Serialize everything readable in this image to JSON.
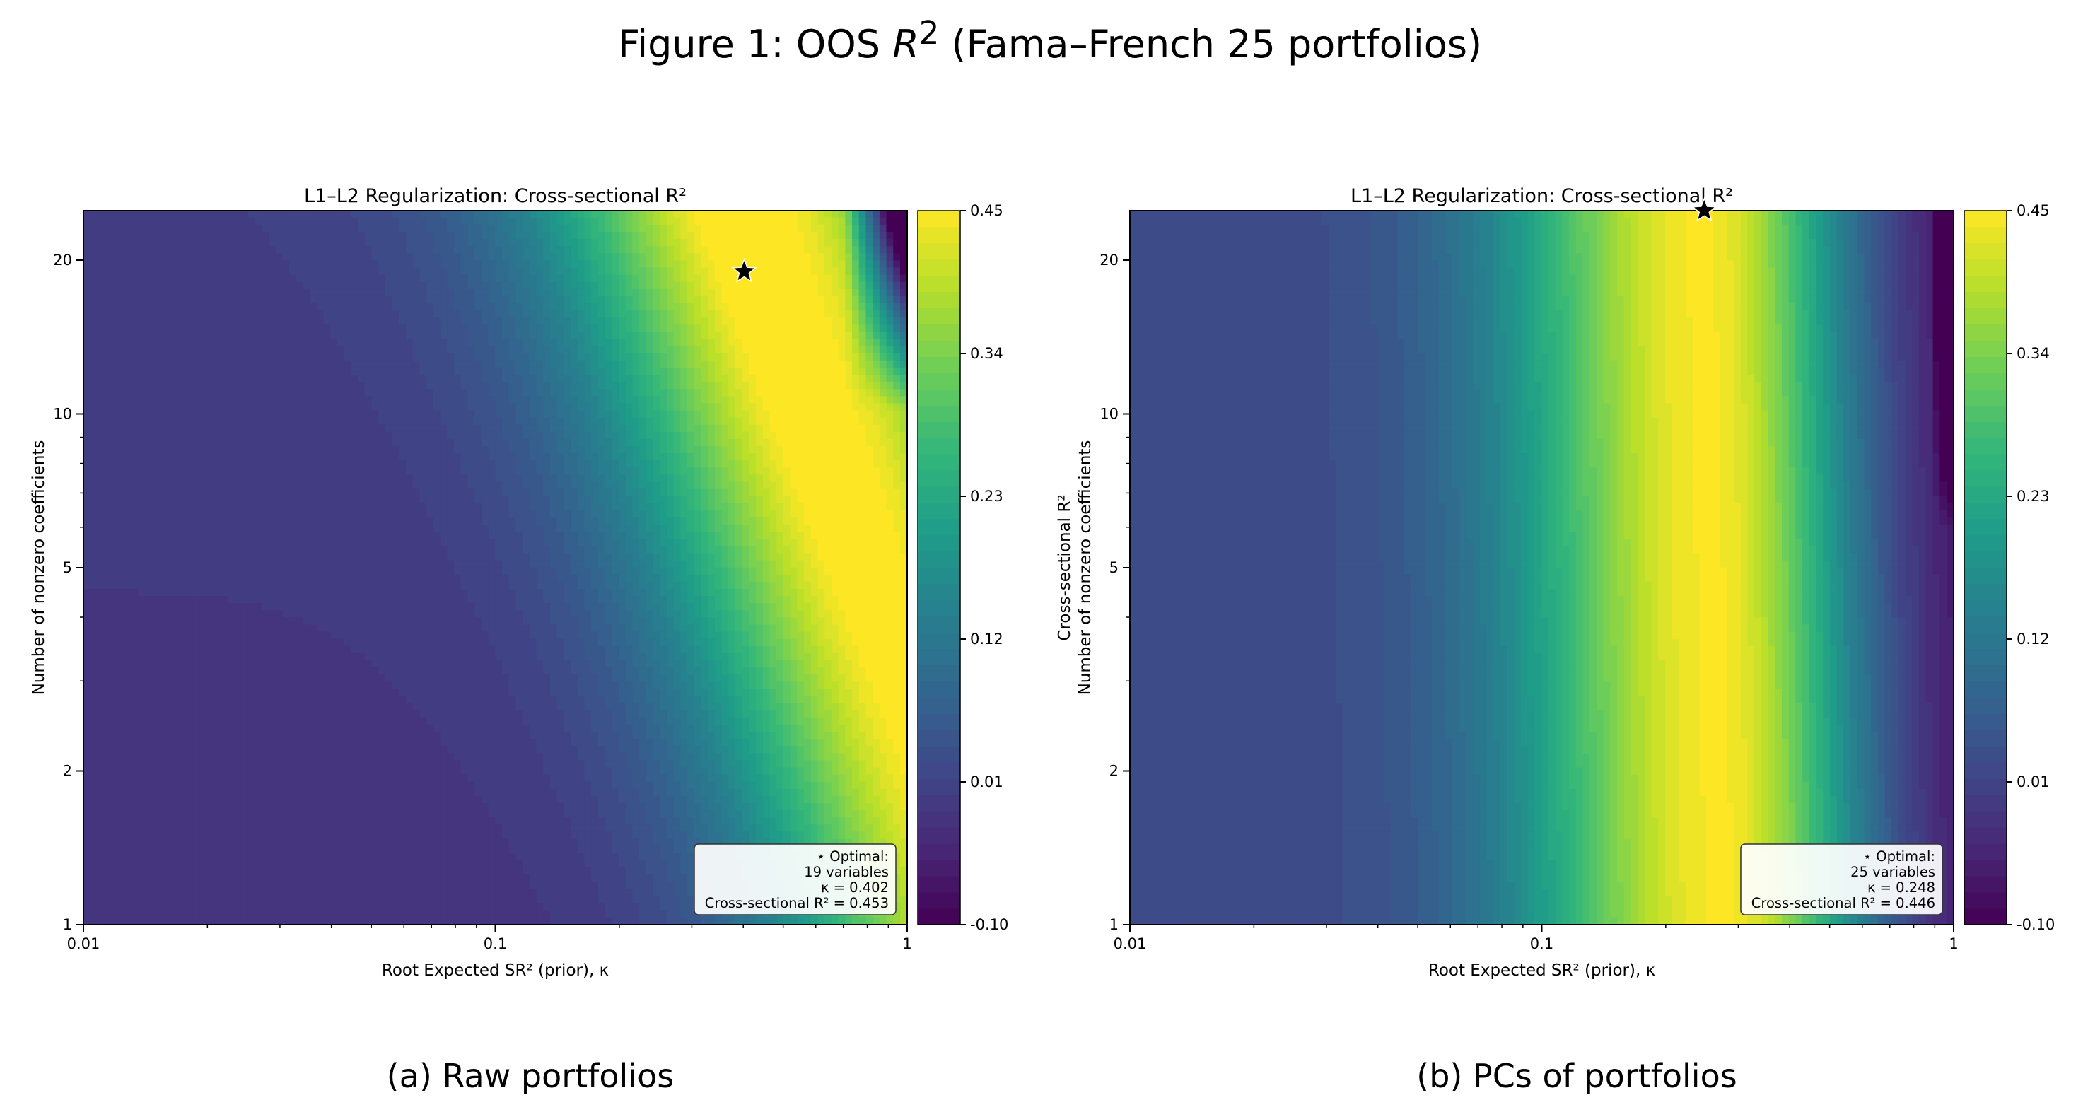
{
  "figure": {
    "title_main": "Figure 1: OOS ",
    "title_r": "R",
    "title_sup": "2",
    "title_rest": " (Fama–French 25 portfolios)"
  },
  "chart_data": [
    {
      "type": "heatmap",
      "caption": "(a) Raw portfolios",
      "title": "L1–L2 Regularization: Cross-sectional R²",
      "xlabel": "Root Expected SR² (prior), κ",
      "ylabel": "Number of nonzero coefficients",
      "xscale": "log",
      "yscale": "log",
      "xlim": [
        0.01,
        1
      ],
      "ylim": [
        1,
        25
      ],
      "x_ticks": [
        {
          "value": 0.01,
          "label": "0.01"
        },
        {
          "value": 0.1,
          "label": "0.1"
        },
        {
          "value": 1,
          "label": "1"
        }
      ],
      "y_ticks": [
        {
          "value": 1,
          "label": "1"
        },
        {
          "value": 2,
          "label": "2"
        },
        {
          "value": 5,
          "label": "5"
        },
        {
          "value": 10,
          "label": "10"
        },
        {
          "value": 20,
          "label": "20"
        }
      ],
      "colorbar": {
        "label": "Cross-sectional R²",
        "range": [
          -0.1,
          0.45
        ],
        "ticks": [
          {
            "value": 0.45,
            "label": "0.45"
          },
          {
            "value": 0.34,
            "label": "0.34"
          },
          {
            "value": 0.23,
            "label": "0.23"
          },
          {
            "value": 0.12,
            "label": "0.12"
          },
          {
            "value": 0.01,
            "label": "0.01"
          },
          {
            "value": -0.1,
            "label": "-0.10"
          }
        ],
        "colormap": "viridis"
      },
      "surface": {
        "model": "ridge",
        "ridge_log_kappa_at_top": -0.33,
        "ridge_slope": 0.55,
        "peak": 0.453,
        "left_floor": 0.0,
        "width_left": 0.55,
        "width_right": 0.3,
        "dark_corner_log_kappa": -0.15
      },
      "optimal": {
        "kappa": 0.402,
        "variables": 19,
        "r2": 0.453
      },
      "legend": {
        "line1": "⋆ Optimal:",
        "line2": "19 variables",
        "line3": "κ = 0.402",
        "line4": "Cross-sectional R² = 0.453",
        "location": "lower-right"
      }
    },
    {
      "type": "heatmap",
      "caption": "(b) PCs of portfolios",
      "title": "L1–L2 Regularization: Cross-sectional R²",
      "xlabel": "Root Expected SR² (prior), κ",
      "ylabel": "Number of nonzero coefficients",
      "xscale": "log",
      "yscale": "log",
      "xlim": [
        0.01,
        1
      ],
      "ylim": [
        1,
        25
      ],
      "x_ticks": [
        {
          "value": 0.01,
          "label": "0.01"
        },
        {
          "value": 0.1,
          "label": "0.1"
        },
        {
          "value": 1,
          "label": "1"
        }
      ],
      "y_ticks": [
        {
          "value": 1,
          "label": "1"
        },
        {
          "value": 2,
          "label": "2"
        },
        {
          "value": 5,
          "label": "5"
        },
        {
          "value": 10,
          "label": "10"
        },
        {
          "value": 20,
          "label": "20"
        }
      ],
      "colorbar": {
        "label": "Cross-sectional R²",
        "range": [
          -0.1,
          0.45
        ],
        "ticks": [
          {
            "value": 0.45,
            "label": "0.45"
          },
          {
            "value": 0.34,
            "label": "0.34"
          },
          {
            "value": 0.23,
            "label": "0.23"
          },
          {
            "value": 0.12,
            "label": "0.12"
          },
          {
            "value": 0.01,
            "label": "0.01"
          },
          {
            "value": -0.1,
            "label": "-0.10"
          }
        ],
        "colormap": "viridis"
      },
      "surface": {
        "model": "vertical",
        "ridge_log_kappa_at_top": -0.61,
        "ridge_slope": 0.05,
        "peak": 0.446,
        "left_floor": 0.02,
        "width_left": 0.5,
        "width_right": 0.26,
        "dark_corner_log_kappa": -0.05
      },
      "optimal": {
        "kappa": 0.248,
        "variables": 25,
        "r2": 0.446
      },
      "legend": {
        "line1": "⋆ Optimal:",
        "line2": "25 variables",
        "line3": "κ = 0.248",
        "line4": "Cross-sectional R² = 0.446",
        "location": "lower-right"
      }
    }
  ]
}
